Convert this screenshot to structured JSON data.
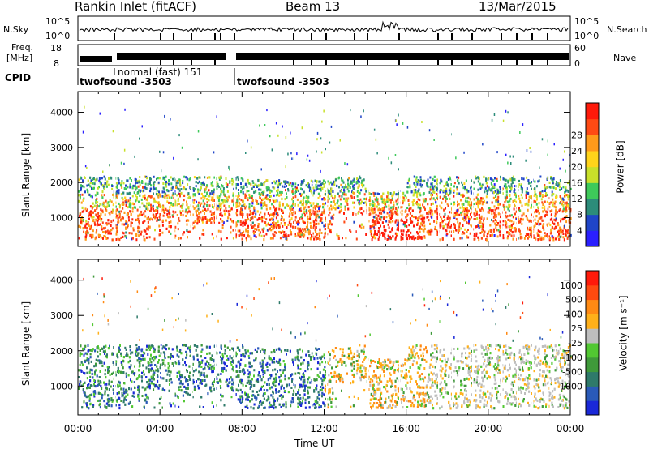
{
  "header": {
    "station": "Rankin Inlet (fitACF)",
    "beam": "Beam 13",
    "date": "13/Mar/2015"
  },
  "nsky_panel": {
    "left_label": "N.Sky",
    "right_label": "N.Search",
    "yticks_left": [
      "10^5",
      "10^0"
    ],
    "yticks_right": [
      "10^5",
      "10^0"
    ]
  },
  "freq_panel": {
    "left_label_1": "Freq.",
    "left_label_2": "[MHz]",
    "yticks_left": [
      "18",
      "8"
    ],
    "right_label": "Nave",
    "yticks_right": [
      "60",
      "0"
    ]
  },
  "cpid_panel": {
    "label": "CPID",
    "programs": [
      "twofsound -3503",
      "normal (fast) 151",
      "twofsound -3503"
    ]
  },
  "chart_data": [
    {
      "type": "heatmap",
      "name": "power",
      "ylabel": "Slant Range [km]",
      "yticks": [
        1000,
        2000,
        3000,
        4000
      ],
      "ylim": [
        180,
        4590
      ],
      "xlim_hours": [
        0,
        24
      ],
      "colorbar_label": "Power [dB]",
      "colorbar_ticks": [
        4,
        8,
        12,
        16,
        20,
        24,
        28
      ],
      "colors": [
        "#2a1fff",
        "#1f45c8",
        "#2c8c7a",
        "#3ec95a",
        "#c8e02a",
        "#ffd41a",
        "#ff9a1a",
        "#ff4a14",
        "#ff1a0a"
      ]
    },
    {
      "type": "heatmap",
      "name": "velocity",
      "ylabel": "Slant Range [km]",
      "yticks": [
        1000,
        2000,
        3000,
        4000
      ],
      "ylim": [
        180,
        4590
      ],
      "xlim_hours": [
        0,
        24
      ],
      "xticks": [
        "00:00",
        "04:00",
        "08:00",
        "12:00",
        "16:00",
        "20:00",
        "00:00"
      ],
      "xlabel": "Time UT",
      "colorbar_label": "Velocity [m s⁻¹]",
      "colorbar_ticks": [
        1000,
        500,
        100,
        25,
        -25,
        -100,
        -500,
        -1000
      ],
      "colors": [
        "#1a28d8",
        "#2a5ab8",
        "#2f7a6a",
        "#3f9a3a",
        "#52c832",
        "#bebebe",
        "#ffb01a",
        "#ff8a14",
        "#ff4a10",
        "#ff1a0a"
      ]
    }
  ]
}
